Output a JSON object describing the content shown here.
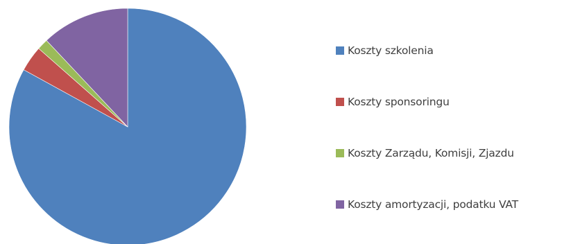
{
  "chart_data": {
    "type": "pie",
    "series": [
      {
        "label": "Koszty szkolenia",
        "value": 83.0,
        "color": "#4f81bd"
      },
      {
        "label": "Koszty sponsoringu",
        "value": 3.5,
        "color": "#c0504d"
      },
      {
        "label": "Koszty Zarządu, Komisji, Zjazdu",
        "value": 1.5,
        "color": "#9bbb59"
      },
      {
        "label": "Koszty amortyzacji, podatku VAT",
        "value": 12.0,
        "color": "#8064a2"
      }
    ],
    "legend_position": "right"
  }
}
